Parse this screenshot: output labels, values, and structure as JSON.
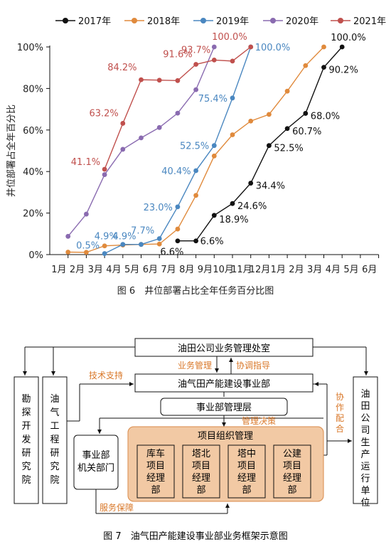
{
  "figure6": {
    "caption": "图 6　井位部署占比全年任务百分比图"
  },
  "chart_data": {
    "type": "line",
    "ylabel": "井位部署占全年百分比",
    "xlabel": "",
    "categories": [
      "1月",
      "2月",
      "3月",
      "4月",
      "5月",
      "6月",
      "7月",
      "8月",
      "9月",
      "10月",
      "11月",
      "12月",
      "1月",
      "2月",
      "3月",
      "4月",
      "5月",
      "6月"
    ],
    "yticks": [
      "0%",
      "20%",
      "40%",
      "60%",
      "80%",
      "100%"
    ],
    "ylim": [
      0,
      100
    ],
    "grid": false,
    "legend_position": "top",
    "series": [
      {
        "name": "2017年",
        "color": "#111111",
        "points": [
          [
            7,
            6.6
          ],
          [
            8,
            6.6
          ],
          [
            9,
            18.9
          ],
          [
            10,
            24.6
          ],
          [
            11,
            34.4
          ],
          [
            12,
            52.5
          ],
          [
            13,
            60.7
          ],
          [
            14,
            68.0
          ],
          [
            15,
            90.2
          ],
          [
            16,
            100.0
          ]
        ],
        "labels": [
          "6.6%",
          "6.6%",
          "18.9%",
          "24.6%",
          "34.4%",
          "52.5%",
          "60.7%",
          "68.0%",
          "90.2%",
          "100.0%"
        ]
      },
      {
        "name": "2018年",
        "color": "#e08a3c",
        "points": [
          [
            1,
            1.2
          ],
          [
            2,
            1.1
          ],
          [
            3,
            4.2
          ],
          [
            4,
            4.6
          ],
          [
            5,
            4.9
          ],
          [
            6,
            5.1
          ],
          [
            7,
            12.3
          ],
          [
            8,
            28.5
          ],
          [
            9,
            47.5
          ],
          [
            10,
            57.7
          ],
          [
            11,
            64.3
          ],
          [
            12,
            67.5
          ],
          [
            13,
            78.7
          ],
          [
            14,
            91.0
          ],
          [
            15,
            100.0
          ]
        ],
        "labels": []
      },
      {
        "name": "2019年",
        "color": "#4a87c0",
        "points": [
          [
            3,
            0.5
          ],
          [
            4,
            4.9
          ],
          [
            5,
            4.9
          ],
          [
            6,
            7.7
          ],
          [
            7,
            23.0
          ],
          [
            8,
            40.4
          ],
          [
            9,
            52.5
          ],
          [
            10,
            75.4
          ],
          [
            11,
            100.0
          ]
        ],
        "labels": [
          "0.5%",
          "4.9%",
          "4.9%",
          "7.7%",
          "23.0%",
          "40.4%",
          "52.5%",
          "75.4%",
          "100.0%"
        ]
      },
      {
        "name": "2020年",
        "color": "#8a6bb0",
        "points": [
          [
            1,
            8.8
          ],
          [
            2,
            19.5
          ],
          [
            3,
            38.5
          ],
          [
            4,
            50.7
          ],
          [
            5,
            56.2
          ],
          [
            6,
            61.2
          ],
          [
            7,
            68.1
          ],
          [
            8,
            79.4
          ],
          [
            9,
            100.0
          ]
        ],
        "labels": []
      },
      {
        "name": "2021年",
        "color": "#c0504d",
        "points": [
          [
            3,
            41.1
          ],
          [
            4,
            63.2
          ],
          [
            5,
            84.2
          ],
          [
            6,
            84.0
          ],
          [
            7,
            83.8
          ],
          [
            8,
            91.6
          ],
          [
            9,
            93.7
          ],
          [
            10,
            93.2
          ],
          [
            11,
            100.0
          ]
        ],
        "labels": [
          "41.1%",
          "63.2%",
          "84.2%",
          "",
          "",
          "91.6%",
          "93.7%",
          "",
          "100.0%"
        ]
      }
    ]
  },
  "figure7": {
    "caption": "图 7　油气田产能建设事业部业务框架示意图",
    "top_box": "油田公司业务管理处室",
    "label_business_mgmt": "业务管理",
    "label_coord": "协调指导",
    "label_tech": "技术支持",
    "main_box": "油气田产能建设事业部",
    "mgmt_layer": "事业部管理层",
    "label_decision": "管理决策",
    "left_box1": "勘探开发研究院",
    "left_box2": "油气工程研究院",
    "right_box": "油田公司生产运行单位",
    "label_cooperate": "协作配合",
    "dept_box": "事业部机关部门",
    "project_org": "项目组织管理",
    "projects": [
      "库车项目经理部",
      "塔北项目经理部",
      "塔中项目经理部",
      "公建项目经理部"
    ],
    "label_service": "服务保障"
  }
}
